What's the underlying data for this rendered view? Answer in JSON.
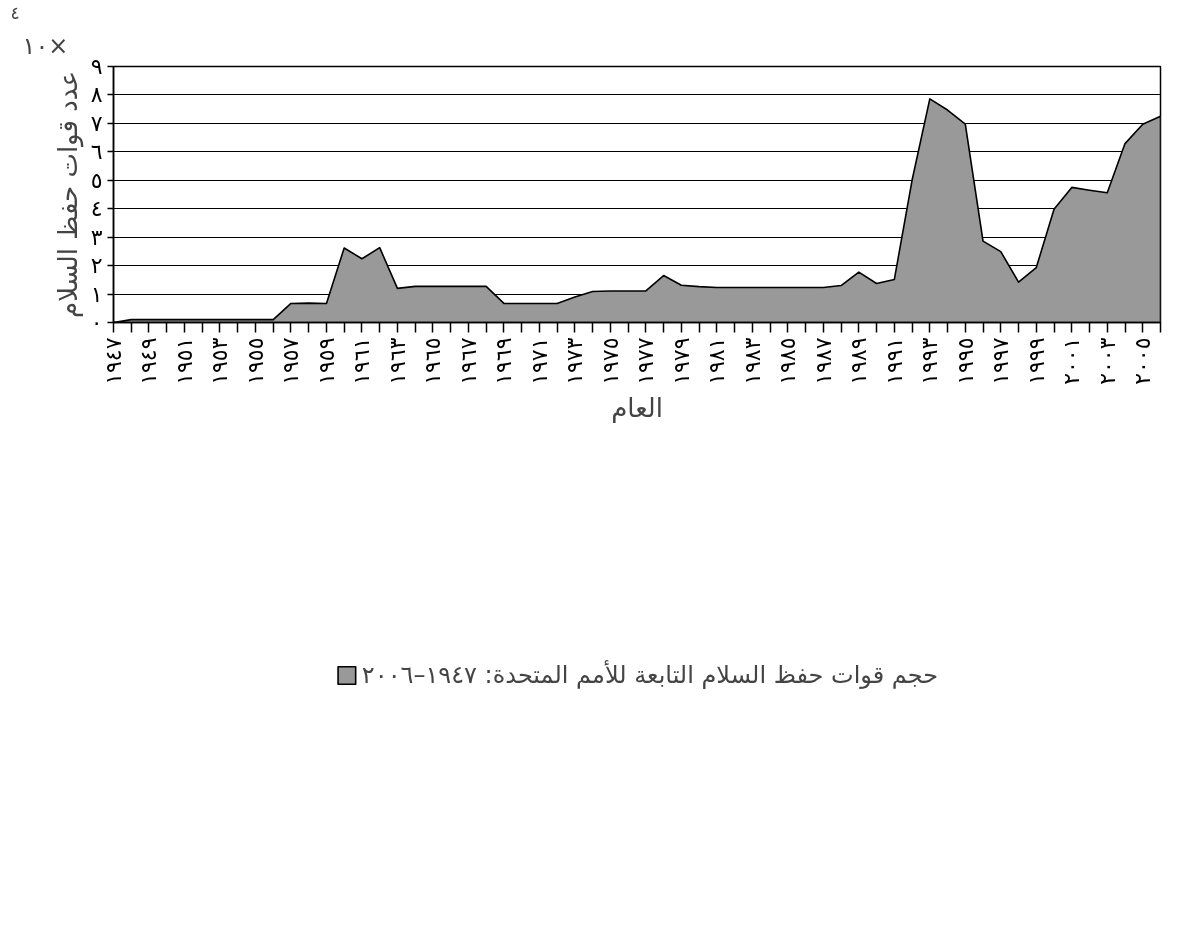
{
  "chart_data": {
    "type": "area",
    "xlabel": "العام",
    "ylabel": "عدد قوات حفظ السلام",
    "annotations": [
      "×١٠$^{٤}$"
    ],
    "x": [
      1947,
      1948,
      1949,
      1950,
      1951,
      1952,
      1953,
      1954,
      1955,
      1956,
      1957,
      1958,
      1959,
      1960,
      1961,
      1962,
      1963,
      1964,
      1965,
      1966,
      1967,
      1968,
      1969,
      1970,
      1971,
      1972,
      1973,
      1974,
      1975,
      1976,
      1977,
      1978,
      1979,
      1980,
      1981,
      1982,
      1983,
      1984,
      1985,
      1986,
      1987,
      1988,
      1989,
      1990,
      1991,
      1992,
      1993,
      1994,
      1995,
      1996,
      1997,
      1998,
      1999,
      2000,
      2001,
      2002,
      2003,
      2004,
      2005,
      2006
    ],
    "series": [
      {
        "name": "حجم قوات حفظ السلام التابعة للأمم المتحدة: ١٩٤٧–٢٠٠٦",
        "color": "#999999",
        "values": [
          0,
          0.1,
          0.1,
          0.1,
          0.1,
          0.1,
          0.1,
          0.1,
          0.1,
          0.1,
          0.67,
          0.68,
          0.67,
          2.62,
          2.24,
          2.63,
          1.2,
          1.27,
          1.27,
          1.27,
          1.27,
          1.27,
          0.67,
          0.67,
          0.67,
          0.67,
          0.9,
          1.09,
          1.11,
          1.11,
          1.11,
          1.65,
          1.31,
          1.26,
          1.23,
          1.23,
          1.23,
          1.23,
          1.23,
          1.23,
          1.23,
          1.3,
          1.77,
          1.37,
          1.51,
          5.0,
          7.86,
          7.47,
          6.97,
          2.86,
          2.49,
          1.42,
          1.93,
          3.98,
          4.75,
          4.65,
          4.56,
          6.29,
          6.97,
          7.25
        ]
      }
    ],
    "xlim": [
      1947,
      2006
    ],
    "xticks": [
      {
        "value": 1947,
        "label": "١٩٤٧"
      },
      {
        "value": 1948,
        "label": null
      },
      {
        "value": 1949,
        "label": "١٩٤٩"
      },
      {
        "value": 1950,
        "label": null
      },
      {
        "value": 1951,
        "label": "١٩٥١"
      },
      {
        "value": 1952,
        "label": null
      },
      {
        "value": 1953,
        "label": "١٩٥٣"
      },
      {
        "value": 1954,
        "label": null
      },
      {
        "value": 1955,
        "label": "١٩٥٥"
      },
      {
        "value": 1956,
        "label": null
      },
      {
        "value": 1957,
        "label": "١٩٥٧"
      },
      {
        "value": 1958,
        "label": null
      },
      {
        "value": 1959,
        "label": "١٩٥٩"
      },
      {
        "value": 1960,
        "label": null
      },
      {
        "value": 1961,
        "label": "١٩٦١"
      },
      {
        "value": 1962,
        "label": null
      },
      {
        "value": 1963,
        "label": "١٩٦٣"
      },
      {
        "value": 1964,
        "label": null
      },
      {
        "value": 1965,
        "label": "١٩٦٥"
      },
      {
        "value": 1966,
        "label": null
      },
      {
        "value": 1967,
        "label": "١٩٦٧"
      },
      {
        "value": 1968,
        "label": null
      },
      {
        "value": 1969,
        "label": "١٩٦٩"
      },
      {
        "value": 1970,
        "label": null
      },
      {
        "value": 1971,
        "label": "١٩٧١"
      },
      {
        "value": 1972,
        "label": null
      },
      {
        "value": 1973,
        "label": "١٩٧٣"
      },
      {
        "value": 1974,
        "label": null
      },
      {
        "value": 1975,
        "label": "١٩٧٥"
      },
      {
        "value": 1976,
        "label": null
      },
      {
        "value": 1977,
        "label": "١٩٧٧"
      },
      {
        "value": 1978,
        "label": null
      },
      {
        "value": 1979,
        "label": "١٩٧٩"
      },
      {
        "value": 1980,
        "label": null
      },
      {
        "value": 1981,
        "label": "١٩٨١"
      },
      {
        "value": 1982,
        "label": null
      },
      {
        "value": 1983,
        "label": "١٩٨٣"
      },
      {
        "value": 1984,
        "label": null
      },
      {
        "value": 1985,
        "label": "١٩٨٥"
      },
      {
        "value": 1986,
        "label": null
      },
      {
        "value": 1987,
        "label": "١٩٨٧"
      },
      {
        "value": 1988,
        "label": null
      },
      {
        "value": 1989,
        "label": "١٩٨٩"
      },
      {
        "value": 1990,
        "label": null
      },
      {
        "value": 1991,
        "label": "١٩٩١"
      },
      {
        "value": 1992,
        "label": null
      },
      {
        "value": 1993,
        "label": "١٩٩٣"
      },
      {
        "value": 1994,
        "label": null
      },
      {
        "value": 1995,
        "label": "١٩٩٥"
      },
      {
        "value": 1996,
        "label": null
      },
      {
        "value": 1997,
        "label": "١٩٩٧"
      },
      {
        "value": 1998,
        "label": null
      },
      {
        "value": 1999,
        "label": "١٩٩٩"
      },
      {
        "value": 2000,
        "label": null
      },
      {
        "value": 2001,
        "label": "٢٠٠١"
      },
      {
        "value": 2002,
        "label": null
      },
      {
        "value": 2003,
        "label": "٢٠٠٣"
      },
      {
        "value": 2004,
        "label": null
      },
      {
        "value": 2005,
        "label": "٢٠٠٥"
      },
      {
        "value": 2006,
        "label": null
      }
    ],
    "ylim": [
      0,
      9
    ],
    "yticks": [
      {
        "value": 0,
        "label": "٠"
      },
      {
        "value": 1,
        "label": "١"
      },
      {
        "value": 2,
        "label": "٢"
      },
      {
        "value": 3,
        "label": "٣"
      },
      {
        "value": 4,
        "label": "٤"
      },
      {
        "value": 5,
        "label": "٥"
      },
      {
        "value": 6,
        "label": "٦"
      },
      {
        "value": 7,
        "label": "٧"
      },
      {
        "value": 8,
        "label": "٨"
      },
      {
        "value": 9,
        "label": "٩"
      }
    ],
    "grid": "y",
    "legend": "bottom"
  }
}
